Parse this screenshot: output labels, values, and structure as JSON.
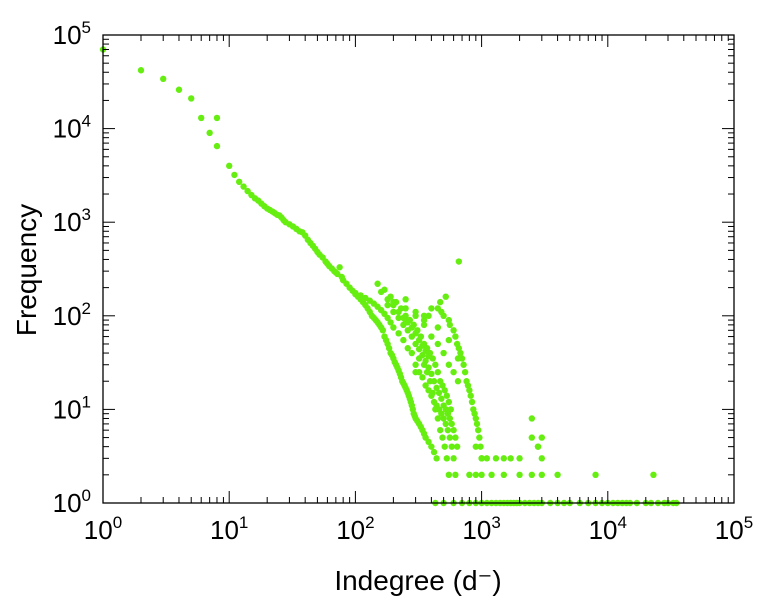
{
  "chart_data": {
    "type": "scatter",
    "xlabel": "Indegree (d⁻)",
    "ylabel": "Frequency",
    "x_scale": "log",
    "y_scale": "log",
    "xlim": [
      1,
      100000
    ],
    "ylim": [
      1,
      100000
    ],
    "grid": false,
    "legend": "none",
    "marker_color": "#66ee11",
    "x_ticks": [
      {
        "base": "10",
        "exp": "0"
      },
      {
        "base": "10",
        "exp": "1"
      },
      {
        "base": "10",
        "exp": "2"
      },
      {
        "base": "10",
        "exp": "3"
      },
      {
        "base": "10",
        "exp": "4"
      },
      {
        "base": "10",
        "exp": "5"
      }
    ],
    "y_ticks": [
      {
        "base": "10",
        "exp": "0"
      },
      {
        "base": "10",
        "exp": "1"
      },
      {
        "base": "10",
        "exp": "2"
      },
      {
        "base": "10",
        "exp": "3"
      },
      {
        "base": "10",
        "exp": "4"
      },
      {
        "base": "10",
        "exp": "5"
      }
    ],
    "points": [
      [
        1,
        70000
      ],
      [
        2,
        42000
      ],
      [
        3,
        34000
      ],
      [
        4,
        26000
      ],
      [
        5,
        21000
      ],
      [
        6,
        13000
      ],
      [
        7,
        9000
      ],
      [
        8,
        13000
      ],
      [
        8,
        6500
      ],
      [
        10,
        4000
      ],
      [
        11,
        3200
      ],
      [
        12,
        2700
      ],
      [
        13,
        2400
      ],
      [
        14,
        2150
      ],
      [
        15,
        1950
      ],
      [
        16,
        1800
      ],
      [
        17,
        1700
      ],
      [
        18,
        1580
      ],
      [
        19,
        1480
      ],
      [
        20,
        1400
      ],
      [
        21,
        1350
      ],
      [
        22,
        1300
      ],
      [
        23,
        1250
      ],
      [
        24,
        1200
      ],
      [
        25,
        1180
      ],
      [
        26,
        1120
      ],
      [
        27,
        1050
      ],
      [
        28,
        1000
      ],
      [
        30,
        950
      ],
      [
        32,
        900
      ],
      [
        34,
        850
      ],
      [
        36,
        800
      ],
      [
        38,
        780
      ],
      [
        40,
        720
      ],
      [
        42,
        650
      ],
      [
        44,
        600
      ],
      [
        46,
        560
      ],
      [
        48,
        520
      ],
      [
        50,
        480
      ],
      [
        52,
        450
      ],
      [
        55,
        420
      ],
      [
        58,
        380
      ],
      [
        60,
        360
      ],
      [
        62,
        340
      ],
      [
        65,
        320
      ],
      [
        68,
        300
      ],
      [
        70,
        290
      ],
      [
        72,
        280
      ],
      [
        75,
        330
      ],
      [
        78,
        260
      ],
      [
        80,
        240
      ],
      [
        85,
        220
      ],
      [
        90,
        200
      ],
      [
        95,
        185
      ],
      [
        100,
        170
      ],
      [
        105,
        160
      ],
      [
        110,
        150
      ],
      [
        115,
        140
      ],
      [
        120,
        130
      ],
      [
        125,
        120
      ],
      [
        130,
        110
      ],
      [
        135,
        100
      ],
      [
        140,
        95
      ],
      [
        145,
        90
      ],
      [
        150,
        85
      ],
      [
        155,
        80
      ],
      [
        160,
        75
      ],
      [
        165,
        70
      ],
      [
        170,
        60
      ],
      [
        175,
        55
      ],
      [
        180,
        50
      ],
      [
        185,
        45
      ],
      [
        190,
        40
      ],
      [
        195,
        38
      ],
      [
        200,
        35
      ],
      [
        205,
        32
      ],
      [
        210,
        30
      ],
      [
        215,
        28
      ],
      [
        220,
        26
      ],
      [
        225,
        24
      ],
      [
        230,
        22
      ],
      [
        235,
        20
      ],
      [
        240,
        19
      ],
      [
        245,
        18
      ],
      [
        250,
        17
      ],
      [
        255,
        16
      ],
      [
        260,
        15
      ],
      [
        265,
        14
      ],
      [
        270,
        13
      ],
      [
        275,
        12
      ],
      [
        280,
        11
      ],
      [
        285,
        10
      ],
      [
        290,
        9
      ],
      [
        295,
        8.5
      ],
      [
        300,
        8
      ],
      [
        310,
        7.5
      ],
      [
        320,
        7
      ],
      [
        330,
        6.5
      ],
      [
        340,
        6
      ],
      [
        350,
        5.5
      ],
      [
        360,
        5
      ],
      [
        380,
        4.5
      ],
      [
        400,
        4
      ],
      [
        420,
        3.5
      ],
      [
        440,
        3
      ],
      [
        300,
        30
      ],
      [
        320,
        25
      ],
      [
        340,
        22
      ],
      [
        360,
        18
      ],
      [
        380,
        16
      ],
      [
        400,
        14
      ],
      [
        420,
        12
      ],
      [
        440,
        11
      ],
      [
        460,
        10
      ],
      [
        480,
        9
      ],
      [
        500,
        8
      ],
      [
        520,
        7
      ],
      [
        540,
        6
      ],
      [
        560,
        5
      ],
      [
        580,
        4
      ],
      [
        600,
        3
      ],
      [
        620,
        2
      ],
      [
        150,
        220
      ],
      [
        170,
        190
      ],
      [
        190,
        160
      ],
      [
        210,
        140
      ],
      [
        230,
        120
      ],
      [
        250,
        100
      ],
      [
        270,
        90
      ],
      [
        290,
        80
      ],
      [
        310,
        70
      ],
      [
        330,
        60
      ],
      [
        350,
        50
      ],
      [
        370,
        45
      ],
      [
        390,
        40
      ],
      [
        410,
        35
      ],
      [
        430,
        30
      ],
      [
        450,
        25
      ],
      [
        470,
        20
      ],
      [
        490,
        18
      ],
      [
        510,
        16
      ],
      [
        530,
        14
      ],
      [
        550,
        12
      ],
      [
        570,
        10
      ],
      [
        160,
        180
      ],
      [
        180,
        150
      ],
      [
        200,
        130
      ],
      [
        220,
        110
      ],
      [
        240,
        95
      ],
      [
        260,
        85
      ],
      [
        280,
        75
      ],
      [
        300,
        65
      ],
      [
        320,
        55
      ],
      [
        340,
        48
      ],
      [
        360,
        42
      ],
      [
        380,
        37
      ],
      [
        180,
        130
      ],
      [
        200,
        110
      ],
      [
        220,
        95
      ],
      [
        240,
        80
      ],
      [
        260,
        70
      ],
      [
        280,
        60
      ],
      [
        300,
        50
      ],
      [
        320,
        44
      ],
      [
        340,
        38
      ],
      [
        360,
        33
      ],
      [
        380,
        28
      ],
      [
        400,
        24
      ],
      [
        420,
        20
      ],
      [
        440,
        17
      ],
      [
        460,
        15
      ],
      [
        480,
        13
      ],
      [
        500,
        11
      ],
      [
        520,
        10
      ],
      [
        540,
        9
      ],
      [
        560,
        8
      ],
      [
        580,
        7
      ],
      [
        600,
        6
      ],
      [
        620,
        5
      ],
      [
        640,
        4
      ],
      [
        200,
        140
      ],
      [
        250,
        120
      ],
      [
        300,
        100
      ],
      [
        350,
        80
      ],
      [
        400,
        60
      ],
      [
        450,
        50
      ],
      [
        500,
        40
      ],
      [
        550,
        30
      ],
      [
        600,
        25
      ],
      [
        650,
        20
      ],
      [
        250,
        150
      ],
      [
        350,
        100
      ],
      [
        450,
        75
      ],
      [
        550,
        55
      ],
      [
        650,
        35
      ],
      [
        660,
        380
      ],
      [
        520,
        160
      ],
      [
        470,
        140
      ],
      [
        400,
        120
      ],
      [
        380,
        100
      ],
      [
        350,
        90
      ],
      [
        300,
        110
      ],
      [
        250,
        90
      ],
      [
        450,
        120
      ],
      [
        480,
        110
      ],
      [
        500,
        100
      ],
      [
        550,
        90
      ],
      [
        560,
        80
      ],
      [
        600,
        70
      ],
      [
        620,
        60
      ],
      [
        640,
        50
      ],
      [
        660,
        45
      ],
      [
        680,
        40
      ],
      [
        700,
        35
      ],
      [
        720,
        30
      ],
      [
        740,
        25
      ],
      [
        760,
        20
      ],
      [
        780,
        18
      ],
      [
        800,
        16
      ],
      [
        820,
        14
      ],
      [
        840,
        12
      ],
      [
        860,
        10
      ],
      [
        880,
        9
      ],
      [
        900,
        8
      ],
      [
        920,
        7
      ],
      [
        940,
        6
      ],
      [
        960,
        5
      ],
      [
        980,
        4
      ],
      [
        1000,
        3
      ],
      [
        900,
        4
      ],
      [
        1000,
        3
      ],
      [
        1100,
        3
      ],
      [
        1300,
        3
      ],
      [
        1500,
        3
      ],
      [
        1700,
        3
      ],
      [
        2000,
        3
      ],
      [
        2500,
        5
      ],
      [
        2800,
        4
      ],
      [
        3000,
        5
      ],
      [
        800,
        2
      ],
      [
        900,
        2
      ],
      [
        1000,
        2
      ],
      [
        1200,
        2
      ],
      [
        1500,
        2
      ],
      [
        2000,
        2
      ],
      [
        2500,
        2
      ],
      [
        3000,
        2
      ],
      [
        4000,
        2
      ],
      [
        8000,
        2
      ],
      [
        23000,
        2
      ],
      [
        2500,
        8
      ],
      [
        2800,
        4
      ],
      [
        3000,
        3
      ],
      [
        430,
        1
      ],
      [
        500,
        1
      ],
      [
        600,
        1
      ],
      [
        700,
        1
      ],
      [
        800,
        1
      ],
      [
        900,
        1
      ],
      [
        1000,
        1
      ],
      [
        1100,
        1
      ],
      [
        1200,
        1
      ],
      [
        1300,
        1
      ],
      [
        1400,
        1
      ],
      [
        1500,
        1
      ],
      [
        1600,
        1
      ],
      [
        1700,
        1
      ],
      [
        1800,
        1
      ],
      [
        1900,
        1
      ],
      [
        2000,
        1
      ],
      [
        2200,
        1
      ],
      [
        2400,
        1
      ],
      [
        2600,
        1
      ],
      [
        2800,
        1
      ],
      [
        3000,
        1
      ],
      [
        3500,
        1
      ],
      [
        4000,
        1
      ],
      [
        4500,
        1
      ],
      [
        5000,
        1
      ],
      [
        6000,
        1
      ],
      [
        7000,
        1
      ],
      [
        8000,
        1
      ],
      [
        9000,
        1
      ],
      [
        10000,
        1
      ],
      [
        11000,
        1
      ],
      [
        12000,
        1
      ],
      [
        13000,
        1
      ],
      [
        14000,
        1
      ],
      [
        15000,
        1
      ],
      [
        17000,
        1
      ],
      [
        20000,
        1
      ],
      [
        22000,
        1
      ],
      [
        25000,
        1
      ],
      [
        28000,
        1
      ],
      [
        30000,
        1
      ],
      [
        33000,
        1
      ],
      [
        35000,
        1
      ],
      [
        300,
        25
      ],
      [
        320,
        35
      ],
      [
        280,
        40
      ],
      [
        260,
        45
      ],
      [
        240,
        55
      ],
      [
        220,
        65
      ],
      [
        200,
        75
      ],
      [
        190,
        85
      ],
      [
        180,
        95
      ],
      [
        170,
        105
      ],
      [
        160,
        115
      ],
      [
        150,
        125
      ],
      [
        140,
        135
      ],
      [
        130,
        145
      ],
      [
        120,
        155
      ],
      [
        110,
        165
      ],
      [
        100,
        175
      ],
      [
        350,
        30
      ],
      [
        370,
        25
      ],
      [
        390,
        20
      ],
      [
        410,
        15
      ],
      [
        430,
        10
      ],
      [
        450,
        8
      ],
      [
        470,
        6
      ],
      [
        490,
        5
      ],
      [
        510,
        4
      ],
      [
        530,
        3
      ],
      [
        550,
        2
      ]
    ]
  }
}
